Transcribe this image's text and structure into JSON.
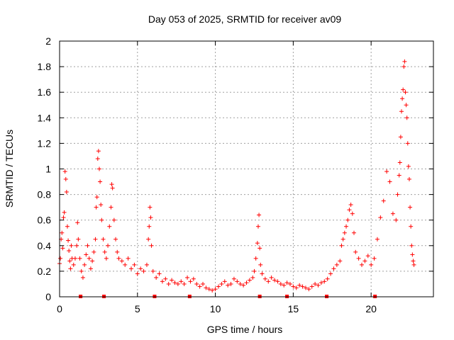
{
  "chart_data": {
    "type": "scatter",
    "title": "Day 053 of 2025, SRMTID for receiver av09",
    "xlabel": "GPS time / hours",
    "ylabel": "SRMTID / TECUs",
    "xlim": [
      0,
      24
    ],
    "ylim": [
      0,
      2
    ],
    "xticks": [
      0,
      5,
      10,
      15,
      20
    ],
    "xtick_labels": [
      "0",
      "5",
      "10",
      "15",
      "20"
    ],
    "yticks": [
      0,
      0.2,
      0.4,
      0.6,
      0.8,
      1,
      1.2,
      1.4,
      1.6,
      1.8,
      2
    ],
    "ytick_labels": [
      "0",
      "0.2",
      "0.4",
      "0.6",
      "0.8",
      "1",
      "1.2",
      "1.4",
      "1.6",
      "1.8",
      "2"
    ],
    "grid": true,
    "marker": "+",
    "color": "#ff0000",
    "series": [
      {
        "name": "SRMTID",
        "points": [
          [
            0.0,
            0.26
          ],
          [
            0.05,
            0.3
          ],
          [
            0.1,
            0.45
          ],
          [
            0.15,
            0.5
          ],
          [
            0.2,
            0.38
          ],
          [
            0.25,
            0.62
          ],
          [
            0.3,
            0.66
          ],
          [
            0.35,
            0.98
          ],
          [
            0.4,
            0.92
          ],
          [
            0.45,
            0.82
          ],
          [
            0.5,
            0.55
          ],
          [
            0.55,
            0.44
          ],
          [
            0.6,
            0.36
          ],
          [
            0.65,
            0.28
          ],
          [
            0.7,
            0.22
          ],
          [
            0.75,
            0.4
          ],
          [
            0.8,
            0.3
          ],
          [
            0.9,
            0.25
          ],
          [
            1.0,
            0.3
          ],
          [
            1.1,
            0.4
          ],
          [
            1.15,
            0.58
          ],
          [
            1.2,
            0.45
          ],
          [
            1.3,
            0.3
          ],
          [
            1.4,
            0.2
          ],
          [
            1.5,
            0.15
          ],
          [
            1.6,
            0.25
          ],
          [
            1.7,
            0.33
          ],
          [
            1.8,
            0.4
          ],
          [
            1.9,
            0.3
          ],
          [
            2.0,
            0.22
          ],
          [
            2.1,
            0.28
          ],
          [
            2.2,
            0.35
          ],
          [
            2.3,
            0.45
          ],
          [
            2.35,
            0.7
          ],
          [
            2.4,
            0.78
          ],
          [
            2.45,
            1.08
          ],
          [
            2.5,
            1.14
          ],
          [
            2.55,
            1.0
          ],
          [
            2.6,
            0.9
          ],
          [
            2.65,
            0.72
          ],
          [
            2.7,
            0.6
          ],
          [
            2.8,
            0.45
          ],
          [
            2.9,
            0.35
          ],
          [
            3.0,
            0.3
          ],
          [
            3.1,
            0.4
          ],
          [
            3.2,
            0.55
          ],
          [
            3.3,
            0.7
          ],
          [
            3.35,
            0.88
          ],
          [
            3.4,
            0.85
          ],
          [
            3.5,
            0.6
          ],
          [
            3.6,
            0.45
          ],
          [
            3.7,
            0.35
          ],
          [
            3.8,
            0.3
          ],
          [
            4.0,
            0.28
          ],
          [
            4.2,
            0.25
          ],
          [
            4.4,
            0.3
          ],
          [
            4.6,
            0.22
          ],
          [
            4.8,
            0.25
          ],
          [
            5.0,
            0.18
          ],
          [
            5.2,
            0.22
          ],
          [
            5.4,
            0.2
          ],
          [
            5.6,
            0.25
          ],
          [
            5.7,
            0.45
          ],
          [
            5.75,
            0.55
          ],
          [
            5.8,
            0.7
          ],
          [
            5.85,
            0.62
          ],
          [
            5.9,
            0.4
          ],
          [
            6.0,
            0.2
          ],
          [
            6.2,
            0.15
          ],
          [
            6.4,
            0.18
          ],
          [
            6.6,
            0.12
          ],
          [
            6.8,
            0.14
          ],
          [
            7.0,
            0.1
          ],
          [
            7.2,
            0.13
          ],
          [
            7.4,
            0.11
          ],
          [
            7.6,
            0.1
          ],
          [
            7.8,
            0.12
          ],
          [
            8.0,
            0.1
          ],
          [
            8.2,
            0.15
          ],
          [
            8.4,
            0.12
          ],
          [
            8.6,
            0.14
          ],
          [
            8.8,
            0.1
          ],
          [
            9.0,
            0.08
          ],
          [
            9.2,
            0.1
          ],
          [
            9.4,
            0.07
          ],
          [
            9.6,
            0.06
          ],
          [
            9.8,
            0.05
          ],
          [
            10.0,
            0.06
          ],
          [
            10.2,
            0.08
          ],
          [
            10.4,
            0.1
          ],
          [
            10.6,
            0.12
          ],
          [
            10.8,
            0.09
          ],
          [
            11.0,
            0.1
          ],
          [
            11.2,
            0.14
          ],
          [
            11.4,
            0.12
          ],
          [
            11.6,
            0.1
          ],
          [
            11.8,
            0.09
          ],
          [
            12.0,
            0.11
          ],
          [
            12.2,
            0.13
          ],
          [
            12.4,
            0.15
          ],
          [
            12.5,
            0.2
          ],
          [
            12.6,
            0.3
          ],
          [
            12.7,
            0.42
          ],
          [
            12.75,
            0.55
          ],
          [
            12.8,
            0.64
          ],
          [
            12.85,
            0.38
          ],
          [
            12.9,
            0.25
          ],
          [
            13.0,
            0.18
          ],
          [
            13.2,
            0.14
          ],
          [
            13.4,
            0.12
          ],
          [
            13.6,
            0.15
          ],
          [
            13.8,
            0.13
          ],
          [
            14.0,
            0.12
          ],
          [
            14.2,
            0.1
          ],
          [
            14.4,
            0.09
          ],
          [
            14.6,
            0.11
          ],
          [
            14.8,
            0.1
          ],
          [
            15.0,
            0.08
          ],
          [
            15.2,
            0.07
          ],
          [
            15.4,
            0.09
          ],
          [
            15.6,
            0.08
          ],
          [
            15.8,
            0.07
          ],
          [
            16.0,
            0.06
          ],
          [
            16.2,
            0.08
          ],
          [
            16.4,
            0.1
          ],
          [
            16.6,
            0.09
          ],
          [
            16.8,
            0.11
          ],
          [
            17.0,
            0.12
          ],
          [
            17.2,
            0.14
          ],
          [
            17.4,
            0.18
          ],
          [
            17.6,
            0.22
          ],
          [
            17.8,
            0.25
          ],
          [
            18.0,
            0.28
          ],
          [
            18.1,
            0.4
          ],
          [
            18.2,
            0.45
          ],
          [
            18.3,
            0.5
          ],
          [
            18.4,
            0.55
          ],
          [
            18.5,
            0.6
          ],
          [
            18.6,
            0.68
          ],
          [
            18.7,
            0.72
          ],
          [
            18.8,
            0.65
          ],
          [
            18.9,
            0.5
          ],
          [
            19.0,
            0.35
          ],
          [
            19.2,
            0.3
          ],
          [
            19.4,
            0.25
          ],
          [
            19.6,
            0.28
          ],
          [
            19.8,
            0.32
          ],
          [
            20.0,
            0.25
          ],
          [
            20.2,
            0.3
          ],
          [
            20.4,
            0.45
          ],
          [
            20.6,
            0.62
          ],
          [
            20.8,
            0.75
          ],
          [
            21.0,
            0.98
          ],
          [
            21.2,
            0.9
          ],
          [
            21.4,
            0.65
          ],
          [
            21.6,
            0.6
          ],
          [
            21.7,
            0.8
          ],
          [
            21.8,
            0.95
          ],
          [
            21.85,
            1.05
          ],
          [
            21.9,
            1.25
          ],
          [
            21.95,
            1.45
          ],
          [
            22.0,
            1.55
          ],
          [
            22.05,
            1.62
          ],
          [
            22.1,
            1.8
          ],
          [
            22.15,
            1.84
          ],
          [
            22.2,
            1.6
          ],
          [
            22.25,
            1.5
          ],
          [
            22.3,
            1.4
          ],
          [
            22.35,
            1.2
          ],
          [
            22.4,
            1.02
          ],
          [
            22.45,
            0.92
          ],
          [
            22.5,
            0.7
          ],
          [
            22.55,
            0.55
          ],
          [
            22.6,
            0.4
          ],
          [
            22.65,
            0.33
          ],
          [
            22.7,
            0.28
          ],
          [
            22.75,
            0.25
          ]
        ]
      }
    ],
    "flag_points": [
      1.35,
      2.85,
      6.1,
      8.35,
      12.85,
      14.6,
      17.15,
      20.25
    ]
  }
}
